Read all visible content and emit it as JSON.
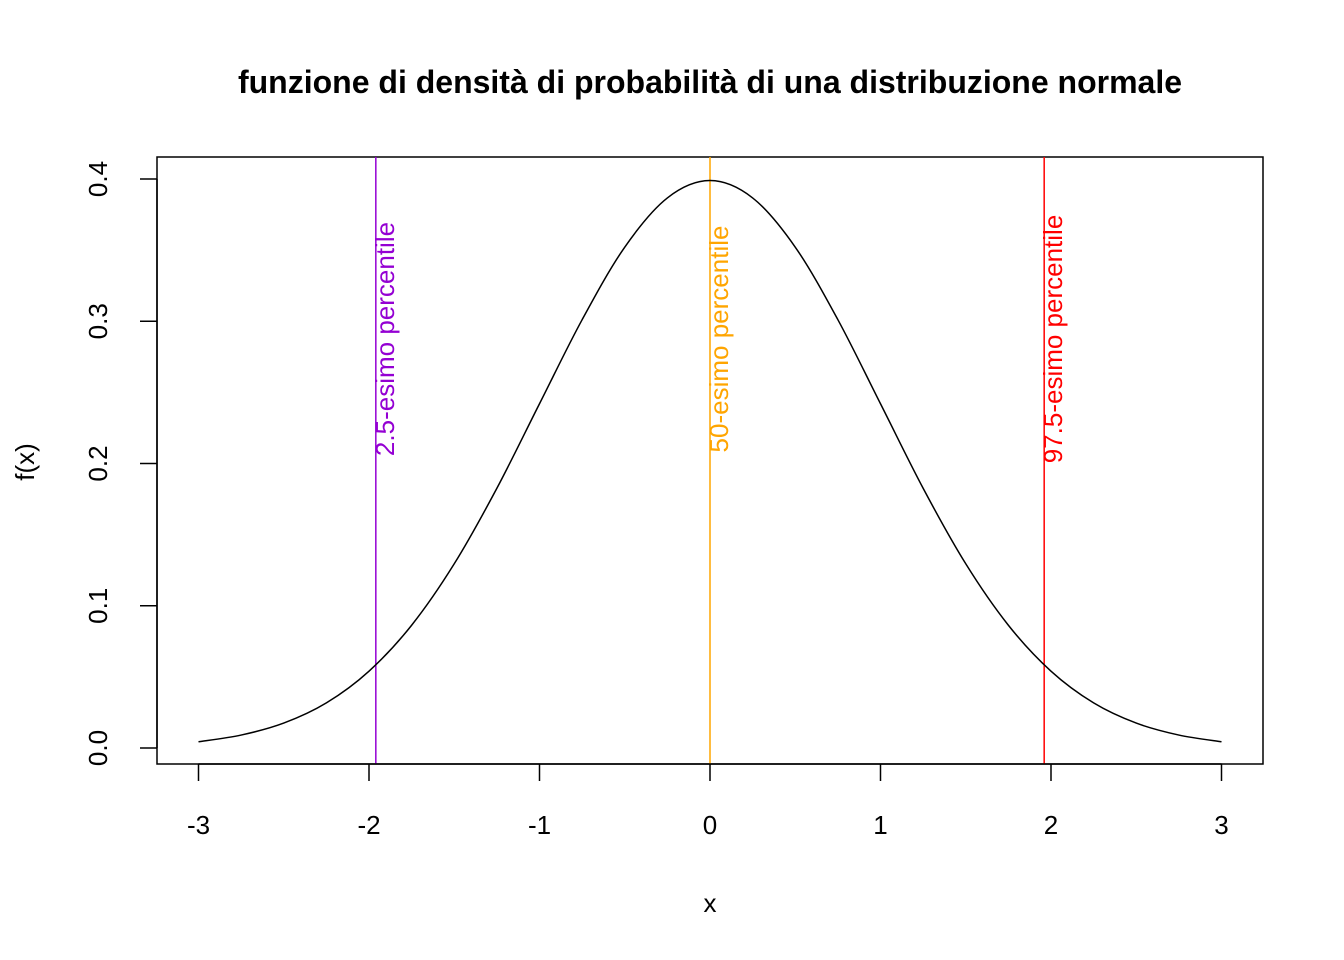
{
  "chart_data": {
    "type": "line",
    "title": "funzione di densità di probabilità di una distribuzione normale",
    "xlabel": "x",
    "ylabel": "f(x)",
    "xlim": [
      -3,
      3
    ],
    "ylim": [
      0,
      0.4
    ],
    "x_ticks": [
      "-3",
      "-2",
      "-1",
      "0",
      "1",
      "2",
      "3"
    ],
    "y_ticks": [
      "0.0",
      "0.1",
      "0.2",
      "0.3",
      "0.4"
    ],
    "grid": false,
    "legend": "none",
    "series": [
      {
        "color": "#000000",
        "x": [
          -3.0,
          -2.75,
          -2.5,
          -2.25,
          -2.0,
          -1.75,
          -1.5,
          -1.25,
          -1.0,
          -0.75,
          -0.5,
          -0.25,
          0.0,
          0.25,
          0.5,
          0.75,
          1.0,
          1.25,
          1.5,
          1.75,
          2.0,
          2.25,
          2.5,
          2.75,
          3.0
        ],
        "values": [
          0.0044,
          0.0091,
          0.0175,
          0.0317,
          0.054,
          0.0863,
          0.1295,
          0.1826,
          0.242,
          0.3011,
          0.3521,
          0.3867,
          0.3989,
          0.3867,
          0.3521,
          0.3011,
          0.242,
          0.1826,
          0.1295,
          0.0863,
          0.054,
          0.0317,
          0.0175,
          0.0091,
          0.0044
        ]
      }
    ],
    "vlines": [
      {
        "x": -1.96,
        "label": "2.5-esimo percentile",
        "color": "#9400D3"
      },
      {
        "x": 0,
        "label": "50-esimo percentile",
        "color": "#FFA500"
      },
      {
        "x": 1.96,
        "label": "97.5-esimo percentile",
        "color": "#FF0000"
      }
    ]
  }
}
